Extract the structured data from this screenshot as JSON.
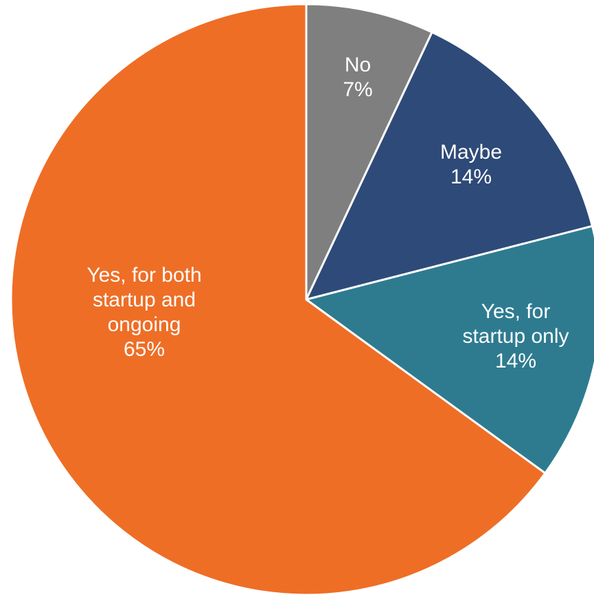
{
  "chart_data": {
    "type": "pie",
    "title": "",
    "start_angle_deg": 0,
    "direction": "clockwise",
    "slices": [
      {
        "name": "No",
        "label_lines": [
          "No"
        ],
        "pct_label": "7%",
        "value": 7,
        "color": "#7f7f7f"
      },
      {
        "name": "Maybe",
        "label_lines": [
          "Maybe"
        ],
        "pct_label": "14%",
        "value": 14,
        "color": "#2e4a78"
      },
      {
        "name": "Yes, for startup only",
        "label_lines": [
          "Yes, for",
          "startup only"
        ],
        "pct_label": "14%",
        "value": 14,
        "color": "#2e7b90"
      },
      {
        "name": "Yes, for both startup and ongoing",
        "label_lines": [
          "Yes, for both",
          "startup and",
          "ongoing"
        ],
        "pct_label": "65%",
        "value": 65,
        "color": "#ee6e26"
      }
    ]
  }
}
